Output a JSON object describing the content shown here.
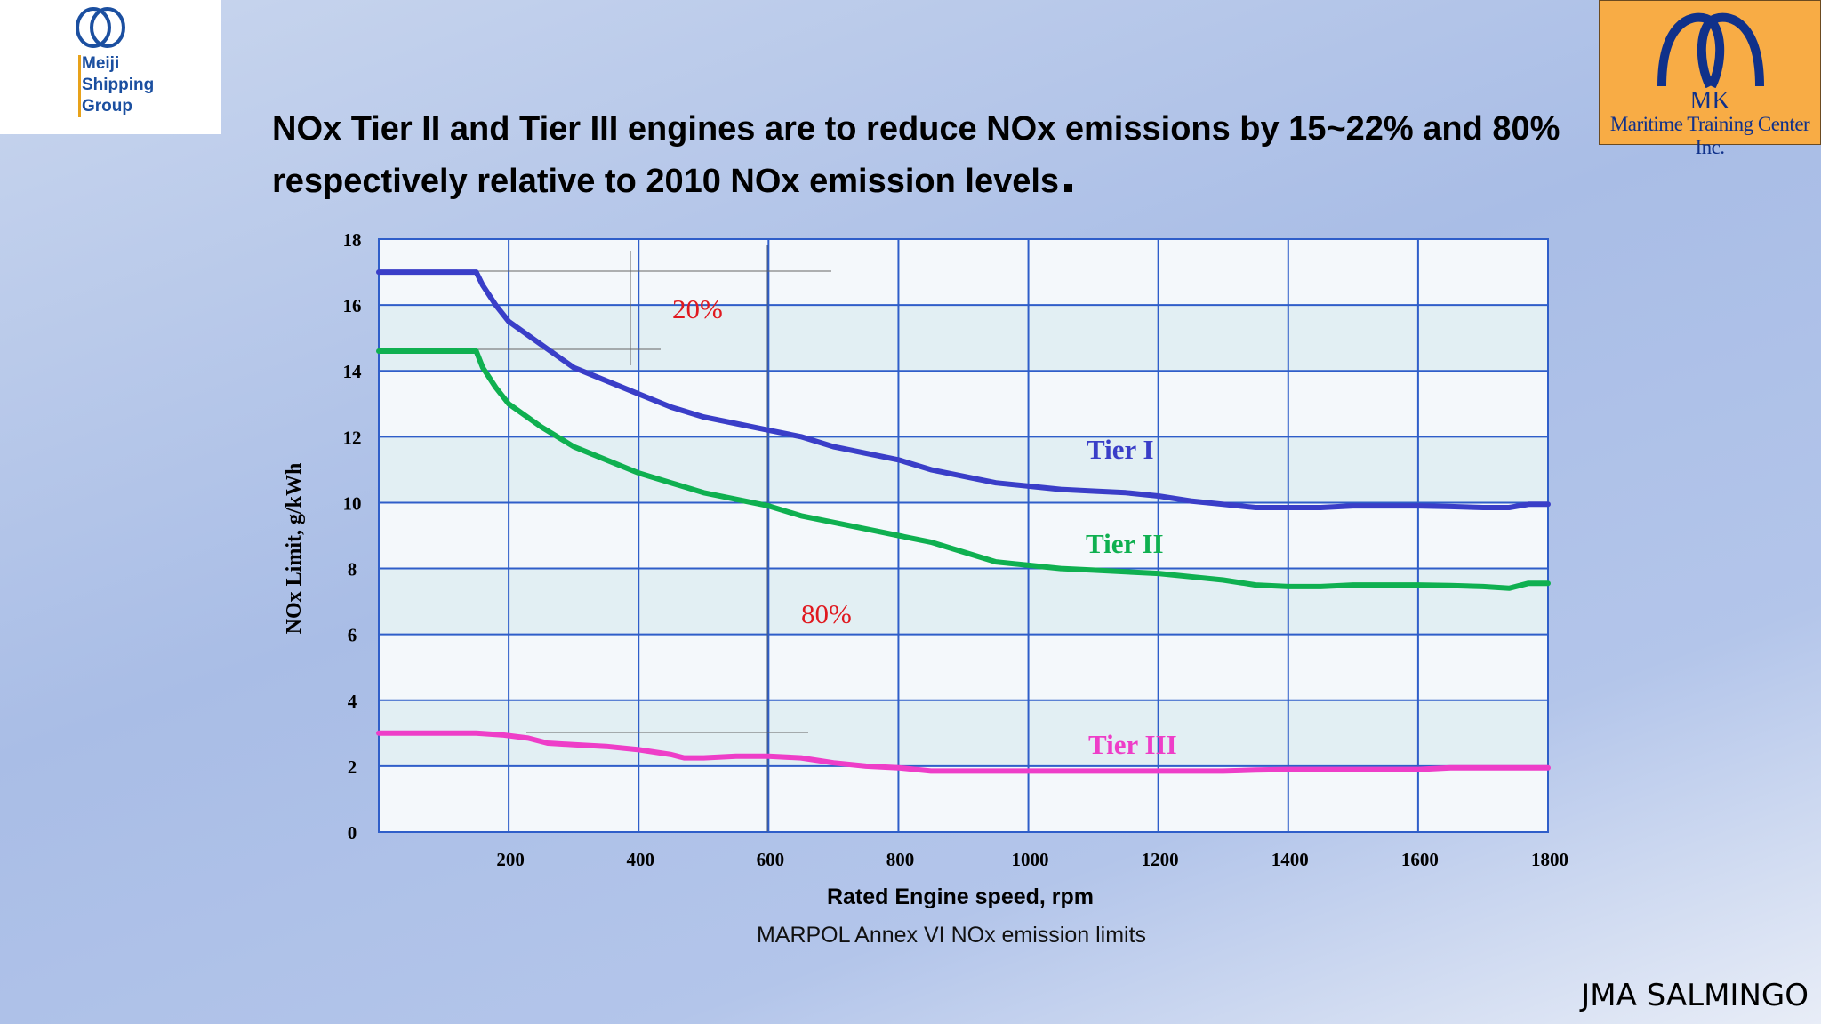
{
  "logos": {
    "left_text": [
      "Meiji",
      "Shipping",
      "Group"
    ],
    "right_abbrev": "MK",
    "right_name": "Maritime Training Center Inc."
  },
  "title": {
    "line1": "NOx Tier  II and Tier III engines are to reduce NOx emissions by 15~22% and 80%",
    "line2": "respectively relative to 2010 NOx emission levels"
  },
  "caption": "MARPOL Annex VI NOx emission limits",
  "author": "JMA SALMINGO",
  "colors": {
    "tier1": "#3a3ec8",
    "tier2": "#0fb050",
    "tier3": "#ee3ec8",
    "grid": "#2f5ec9",
    "annotation": "#e0191f"
  },
  "chart_data": {
    "type": "line",
    "title": "",
    "xlabel": "Rated Engine speed, rpm",
    "ylabel": "NOx Limit, g/kWh",
    "xlim": [
      0,
      1800
    ],
    "ylim": [
      0,
      18
    ],
    "xticks": [
      "200",
      "400",
      "600",
      "800",
      "1000",
      "1200",
      "1400",
      "1600",
      "1800"
    ],
    "yticks": [
      "0",
      "2",
      "4",
      "6",
      "8",
      "10",
      "12",
      "14",
      "16",
      "18"
    ],
    "grid": true,
    "series": [
      {
        "name": "Tier I",
        "color": "#3a3ec8",
        "x": [
          0,
          150,
          160,
          180,
          200,
          250,
          300,
          350,
          400,
          450,
          500,
          550,
          600,
          650,
          700,
          750,
          800,
          850,
          900,
          950,
          1000,
          1050,
          1100,
          1150,
          1200,
          1250,
          1300,
          1350,
          1400,
          1450,
          1500,
          1550,
          1600,
          1650,
          1700,
          1740,
          1770,
          1800
        ],
        "y": [
          17.0,
          17.0,
          16.6,
          16.0,
          15.5,
          14.8,
          14.1,
          13.7,
          13.3,
          12.9,
          12.6,
          12.4,
          12.2,
          12.0,
          11.7,
          11.5,
          11.3,
          11.0,
          10.8,
          10.6,
          10.5,
          10.4,
          10.35,
          10.3,
          10.2,
          10.05,
          9.95,
          9.85,
          9.85,
          9.85,
          9.9,
          9.9,
          9.9,
          9.88,
          9.85,
          9.85,
          9.95,
          9.95
        ]
      },
      {
        "name": "Tier II",
        "color": "#0fb050",
        "x": [
          0,
          150,
          160,
          180,
          200,
          250,
          300,
          350,
          400,
          450,
          500,
          550,
          600,
          650,
          700,
          750,
          800,
          850,
          900,
          950,
          1000,
          1050,
          1100,
          1150,
          1200,
          1250,
          1300,
          1350,
          1400,
          1450,
          1500,
          1550,
          1600,
          1650,
          1700,
          1740,
          1770,
          1800
        ],
        "y": [
          14.6,
          14.6,
          14.1,
          13.5,
          13.0,
          12.3,
          11.7,
          11.3,
          10.9,
          10.6,
          10.3,
          10.1,
          9.9,
          9.6,
          9.4,
          9.2,
          9.0,
          8.8,
          8.5,
          8.2,
          8.1,
          8.0,
          7.95,
          7.9,
          7.85,
          7.75,
          7.65,
          7.5,
          7.45,
          7.45,
          7.5,
          7.5,
          7.5,
          7.48,
          7.45,
          7.4,
          7.55,
          7.55
        ]
      },
      {
        "name": "Tier III",
        "color": "#ee3ec8",
        "x": [
          0,
          100,
          150,
          190,
          230,
          260,
          300,
          350,
          400,
          450,
          470,
          500,
          550,
          600,
          650,
          700,
          750,
          800,
          850,
          900,
          950,
          1000,
          1050,
          1100,
          1150,
          1200,
          1250,
          1300,
          1350,
          1400,
          1450,
          1500,
          1550,
          1600,
          1650,
          1700,
          1750,
          1800
        ],
        "y": [
          3.0,
          3.0,
          3.0,
          2.95,
          2.85,
          2.7,
          2.65,
          2.6,
          2.5,
          2.35,
          2.25,
          2.25,
          2.3,
          2.3,
          2.25,
          2.1,
          2.0,
          1.95,
          1.85,
          1.85,
          1.85,
          1.85,
          1.85,
          1.85,
          1.85,
          1.85,
          1.85,
          1.85,
          1.88,
          1.9,
          1.9,
          1.9,
          1.9,
          1.9,
          1.95,
          1.95,
          1.95,
          1.95
        ]
      }
    ],
    "annotations": [
      "20%",
      "80%"
    ]
  }
}
